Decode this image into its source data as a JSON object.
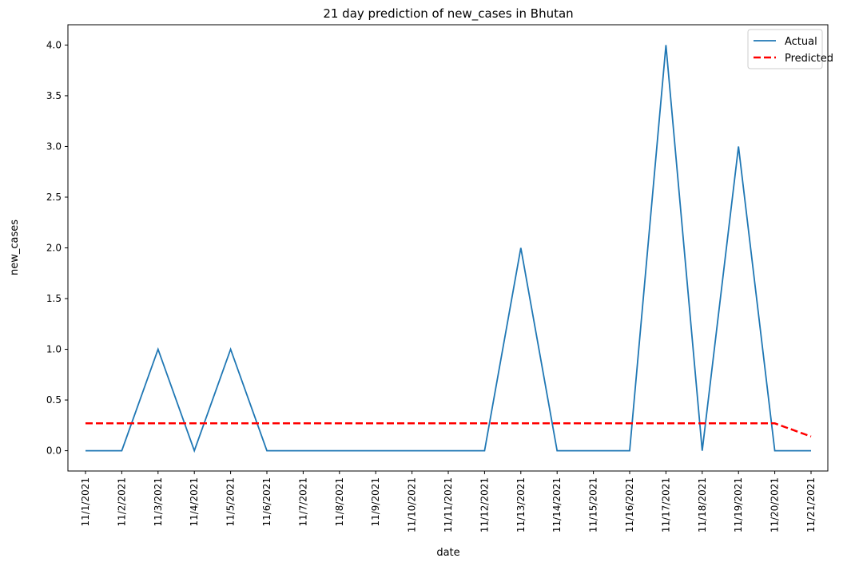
{
  "chart_data": {
    "type": "line",
    "title": "21 day prediction of new_cases in Bhutan",
    "xlabel": "date",
    "ylabel": "new_cases",
    "categories": [
      "11/1/2021",
      "11/2/2021",
      "11/3/2021",
      "11/4/2021",
      "11/5/2021",
      "11/6/2021",
      "11/7/2021",
      "11/8/2021",
      "11/9/2021",
      "11/10/2021",
      "11/11/2021",
      "11/12/2021",
      "11/13/2021",
      "11/14/2021",
      "11/15/2021",
      "11/16/2021",
      "11/17/2021",
      "11/18/2021",
      "11/19/2021",
      "11/20/2021",
      "11/21/2021"
    ],
    "yticks": [
      "0.0",
      "0.5",
      "1.0",
      "1.5",
      "2.0",
      "2.5",
      "3.0",
      "3.5",
      "4.0"
    ],
    "ylim": [
      -0.2,
      4.2
    ],
    "grid": false,
    "legend_position": "top-right",
    "series": [
      {
        "name": "Actual",
        "style": "solid",
        "color": "#1f77b4",
        "values": [
          0,
          0,
          1,
          0,
          1,
          0,
          0,
          0,
          0,
          0,
          0,
          0,
          2,
          0,
          0,
          0,
          4,
          0,
          3,
          0,
          0
        ]
      },
      {
        "name": "Predicted",
        "style": "dashed",
        "color": "#ff0000",
        "values": [
          0.27,
          0.27,
          0.27,
          0.27,
          0.27,
          0.27,
          0.27,
          0.27,
          0.27,
          0.27,
          0.27,
          0.27,
          0.27,
          0.27,
          0.27,
          0.27,
          0.27,
          0.27,
          0.27,
          0.27,
          0.14
        ]
      }
    ]
  }
}
